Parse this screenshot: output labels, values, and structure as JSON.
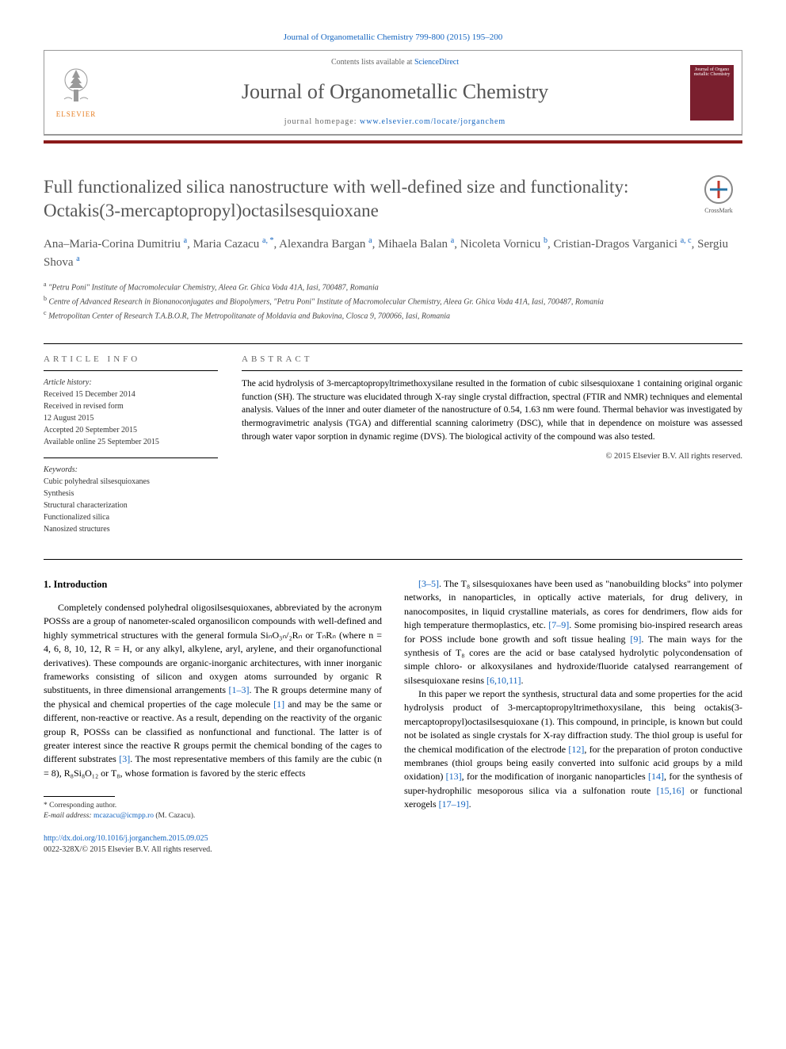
{
  "top_citation": "Journal of Organometallic Chemistry 799-800 (2015) 195–200",
  "header": {
    "contents_text_pre": "Contents lists available at ",
    "contents_link": "ScienceDirect",
    "journal_name": "Journal of Organometallic Chemistry",
    "homepage_pre": "journal homepage: ",
    "homepage_link": "www.elsevier.com/locate/jorganchem",
    "elsevier": "ELSEVIER",
    "cover_text": "Journal of Organo metallic Chemistry"
  },
  "crossmark": "CrossMark",
  "title": "Full functionalized silica nanostructure with well-defined size and functionality: Octakis(3-mercaptopropyl)octasilsesquioxane",
  "authors_html": "Ana–Maria-Corina Dumitriu <sup>a</sup>, Maria Cazacu <sup>a, *</sup>, Alexandra Bargan <sup>a</sup>, Mihaela Balan <sup>a</sup>, Nicoleta Vornicu <sup>b</sup>, Cristian-Dragos Varganici <sup>a, c</sup>, Sergiu Shova <sup>a</sup>",
  "affiliations": [
    {
      "sup": "a",
      "text": "\"Petru Poni\" Institute of Macromolecular Chemistry, Aleea Gr. Ghica Voda 41A, Iasi, 700487, Romania"
    },
    {
      "sup": "b",
      "text": "Centre of Advanced Research in Bionanoconjugates and Biopolymers, \"Petru Poni\" Institute of Macromolecular Chemistry, Aleea Gr. Ghica Voda 41A, Iasi, 700487, Romania"
    },
    {
      "sup": "c",
      "text": "Metropolitan Center of Research T.A.B.O.R, The Metropolitanate of Moldavia and Bukovina, Closca 9, 700066, Iasi, Romania"
    }
  ],
  "info": {
    "heading": "ARTICLE INFO",
    "history_label": "Article history:",
    "history": [
      "Received 15 December 2014",
      "Received in revised form",
      "12 August 2015",
      "Accepted 20 September 2015",
      "Available online 25 September 2015"
    ],
    "keywords_label": "Keywords:",
    "keywords": [
      "Cubic polyhedral silsesquioxanes",
      "Synthesis",
      "Structural characterization",
      "Functionalized silica",
      "Nanosized structures"
    ]
  },
  "abstract": {
    "heading": "ABSTRACT",
    "text": "The acid hydrolysis of 3-mercaptopropyltrimethoxysilane resulted in the formation of cubic silsesquioxane 1 containing original organic function (SH). The structure was elucidated through X-ray single crystal diffraction, spectral (FTIR and NMR) techniques and elemental analysis. Values of the inner and outer diameter of the nanostructure of 0.54, 1.63 nm were found. Thermal behavior was investigated by thermogravimetric analysis (TGA) and differential scanning calorimetry (DSC), while that in dependence on moisture was assessed through water vapor sorption in dynamic regime (DVS). The biological activity of the compound was also tested.",
    "copyright": "© 2015 Elsevier B.V. All rights reserved."
  },
  "body": {
    "section_head": "1. Introduction",
    "col1": "Completely condensed polyhedral oligosilsesquioxanes, abbreviated by the acronym POSSs are a group of nanometer-scaled organosilicon compounds with well-defined and highly symmetrical structures with the general formula SiₙO₃ₙ/₂Rₙ or TₙRₙ (where n = 4, 6, 8, 10, 12, R = H, or any alkyl, alkylene, aryl, arylene, and their organofunctional derivatives). These compounds are organic-inorganic architectures, with inner inorganic frameworks consisting of silicon and oxygen atoms surrounded by organic R substituents, in three dimensional arrangements <a>[1–3]</a>. The R groups determine many of the physical and chemical properties of the cage molecule <a>[1]</a> and may be the same or different, non-reactive or reactive. As a result, depending on the reactivity of the organic group R, POSSs can be classified as nonfunctional and functional. The latter is of greater interest since the reactive R groups permit the chemical bonding of the cages to different substrates <a>[3]</a>. The most representative members of this family are the cubic (n = 8), R₈Si₈O₁₂ or T₈, whose formation is favored by the steric effects",
    "col2": "<a>[3–5]</a>. The T₈ silsesquioxanes have been used as \"nanobuilding blocks\" into polymer networks, in nanoparticles, in optically active materials, for drug delivery, in nanocomposites, in liquid crystalline materials, as cores for dendrimers, flow aids for high temperature thermoplastics, etc. <a>[7–9]</a>. Some promising bio-inspired research areas for POSS include bone growth and soft tissue healing <a>[9]</a>. The main ways for the synthesis of T₈ cores are the acid or base catalysed hydrolytic polycondensation of simple chloro- or alkoxysilanes and hydroxide/fluoride catalysed rearrangement of silsesquioxane resins <a>[6,10,11]</a>.",
    "col2b": "In this paper we report the synthesis, structural data and some properties for the acid hydrolysis product of 3-mercaptopropyltrimethoxysilane, this being octakis(3-mercaptopropyl)octasilsesquioxane (1). This compound, in principle, is known but could not be isolated as single crystals for X-ray diffraction study. The thiol group is useful for the chemical modification of the electrode <a>[12]</a>, for the preparation of proton conductive membranes (thiol groups being easily converted into sulfonic acid groups by a mild oxidation) <a>[13]</a>, for the modification of inorganic nanoparticles <a>[14]</a>, for the synthesis of super-hydrophilic mesoporous silica via a sulfonation route <a>[15,16]</a> or functional xerogels <a>[17–19]</a>."
  },
  "corresp": {
    "star": "* Corresponding author.",
    "email_label": "E-mail address: ",
    "email": "mcazacu@icmpp.ro",
    "email_who": " (M. Cazacu)."
  },
  "footer": {
    "doi": "http://dx.doi.org/10.1016/j.jorganchem.2015.09.025",
    "issn": "0022-328X/© 2015 Elsevier B.V. All rights reserved."
  },
  "colors": {
    "link": "#1565c0",
    "red_bar": "#8b1a1a",
    "heading_grey": "#555555"
  }
}
